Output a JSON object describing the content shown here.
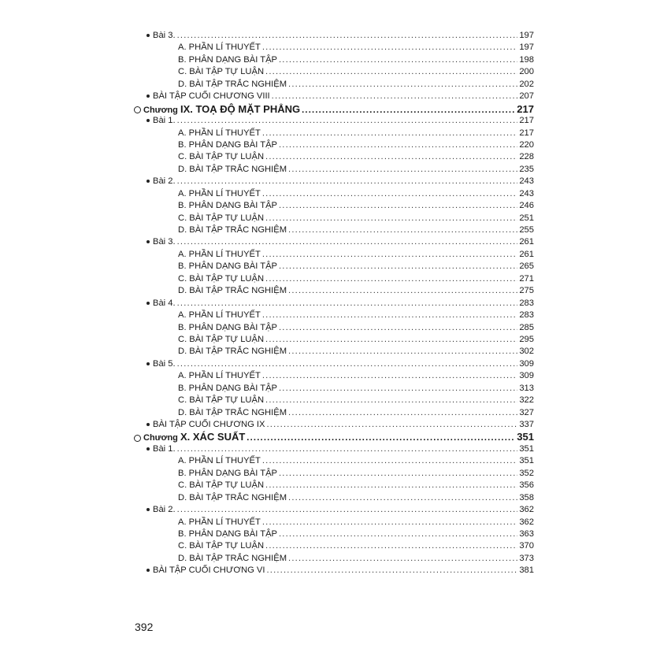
{
  "toc": [
    {
      "level": "lesson",
      "label": "Bài 3.",
      "page": "197"
    },
    {
      "level": "section",
      "label": "A. PHẦN LÍ THUYẾT",
      "page": "197"
    },
    {
      "level": "section",
      "label": "B. PHÂN DẠNG BÀI TẬP",
      "page": "198"
    },
    {
      "level": "section",
      "label": "C. BÀI TẬP TỰ LUẬN",
      "page": "200"
    },
    {
      "level": "section",
      "label": "D. BÀI TẬP TRẮC NGHIỆM",
      "page": "202"
    },
    {
      "level": "lesson",
      "label": "BÀI TẬP CUỐI CHƯƠNG VIII",
      "page": "207"
    },
    {
      "level": "chapter",
      "prefix": "Chương",
      "label": "IX. TOẠ ĐỘ MẶT PHẲNG",
      "page": "217"
    },
    {
      "level": "lesson",
      "label": "Bài 1.",
      "page": "217"
    },
    {
      "level": "section",
      "label": "A. PHẦN LÍ THUYẾT",
      "page": "217"
    },
    {
      "level": "section",
      "label": "B. PHÂN DẠNG BÀI TẬP",
      "page": "220"
    },
    {
      "level": "section",
      "label": "C. BÀI TẬP TỰ LUẬN",
      "page": "228"
    },
    {
      "level": "section",
      "label": "D. BÀI TẬP TRẮC NGHIỆM",
      "page": "235"
    },
    {
      "level": "lesson",
      "label": "Bài 2.",
      "page": "243"
    },
    {
      "level": "section",
      "label": "A. PHẦN LÍ THUYẾT",
      "page": "243"
    },
    {
      "level": "section",
      "label": "B. PHÂN DẠNG BÀI TẬP",
      "page": "246"
    },
    {
      "level": "section",
      "label": "C. BÀI TẬP TỰ LUẬN",
      "page": "251"
    },
    {
      "level": "section",
      "label": "D. BÀI TẬP TRẮC NGHIỆM",
      "page": "255"
    },
    {
      "level": "lesson",
      "label": "Bài 3.",
      "page": "261"
    },
    {
      "level": "section",
      "label": "A. PHẦN LÍ THUYẾT",
      "page": "261"
    },
    {
      "level": "section",
      "label": "B. PHÂN DẠNG BÀI TẬP",
      "page": "265"
    },
    {
      "level": "section",
      "label": "C. BÀI TẬP TỰ LUẬN",
      "page": "271"
    },
    {
      "level": "section",
      "label": "D. BÀI TẬP TRẮC NGHIỆM",
      "page": "275"
    },
    {
      "level": "lesson",
      "label": "Bài 4.",
      "page": "283"
    },
    {
      "level": "section",
      "label": "A. PHẦN LÍ THUYẾT",
      "page": "283"
    },
    {
      "level": "section",
      "label": "B. PHÂN DẠNG BÀI TẬP",
      "page": "285"
    },
    {
      "level": "section",
      "label": "C. BÀI TẬP TỰ LUẬN",
      "page": "295"
    },
    {
      "level": "section",
      "label": "D. BÀI TẬP TRẮC NGHIỆM",
      "page": "302"
    },
    {
      "level": "lesson",
      "label": "Bài 5.",
      "page": "309"
    },
    {
      "level": "section",
      "label": "A. PHẦN LÍ THUYẾT",
      "page": "309"
    },
    {
      "level": "section",
      "label": "B. PHÂN DẠNG BÀI TẬP",
      "page": "313"
    },
    {
      "level": "section",
      "label": "C. BÀI TẬP TỰ LUẬN",
      "page": "322"
    },
    {
      "level": "section",
      "label": "D. BÀI TẬP TRẮC NGHIỆM",
      "page": "327"
    },
    {
      "level": "lesson",
      "label": "BÀI TẬP CUỐI CHƯƠNG IX",
      "page": "337"
    },
    {
      "level": "chapter",
      "prefix": "Chương",
      "label": "X. XÁC SUẤT",
      "page": "351"
    },
    {
      "level": "lesson",
      "label": "Bài 1.",
      "page": "351"
    },
    {
      "level": "section",
      "label": "A. PHẦN LÍ THUYẾT",
      "page": "351"
    },
    {
      "level": "section",
      "label": "B. PHÂN DẠNG BÀI TẬP",
      "page": "352"
    },
    {
      "level": "section",
      "label": "C. BÀI TẬP TỰ LUẬN",
      "page": "356"
    },
    {
      "level": "section",
      "label": "D. BÀI TẬP TRẮC NGHIỆM",
      "page": "358"
    },
    {
      "level": "lesson",
      "label": "Bài 2.",
      "page": "362"
    },
    {
      "level": "section",
      "label": "A. PHẦN LÍ THUYẾT",
      "page": "362"
    },
    {
      "level": "section",
      "label": "B. PHÂN DẠNG BÀI TẬP",
      "page": "363"
    },
    {
      "level": "section",
      "label": "C. BÀI TẬP TỰ LUẬN",
      "page": "370"
    },
    {
      "level": "section",
      "label": "D. BÀI TẬP TRẮC NGHIỆM",
      "page": "373"
    },
    {
      "level": "lesson",
      "label": "BÀI TẬP CUỐI CHƯƠNG VI",
      "page": "381"
    }
  ],
  "page_number": "392"
}
